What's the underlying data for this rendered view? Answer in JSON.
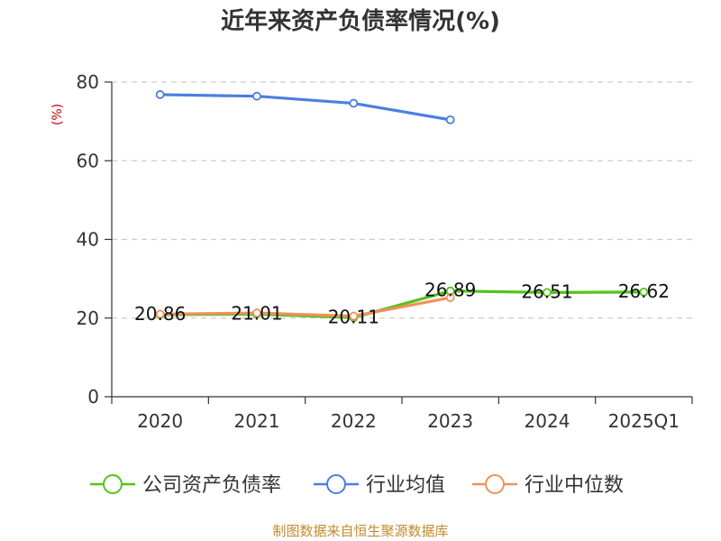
{
  "chart_data": {
    "type": "line",
    "title": "近年来资产负债率情况(%)",
    "ylabel": "(%)",
    "categories": [
      "2020",
      "2021",
      "2022",
      "2023",
      "2024",
      "2025Q1"
    ],
    "ylim": [
      0,
      80
    ],
    "yticks": [
      0,
      20,
      40,
      60,
      80
    ],
    "grid": true,
    "legend_position": "bottom",
    "series": [
      {
        "name": "公司资产负债率",
        "color": "#52c41a",
        "values": [
          20.86,
          21.01,
          20.11,
          26.89,
          26.51,
          26.62
        ],
        "labels": [
          "20.86",
          "21.01",
          "20.11",
          "26.89",
          "26.51",
          "26.62"
        ]
      },
      {
        "name": "行业均值",
        "color": "#4a7fe0",
        "values": [
          76.8,
          76.4,
          74.6,
          70.4,
          null,
          null
        ]
      },
      {
        "name": "行业中位数",
        "color": "#f0915a",
        "values": [
          21.0,
          21.3,
          20.5,
          25.2,
          null,
          null
        ]
      }
    ]
  },
  "source": "制图数据来自恒生聚源数据库",
  "colors": {
    "ylabel": "#cc0000",
    "source": "#c08a2e",
    "grid": "#cccccc",
    "axis": "#333333"
  }
}
